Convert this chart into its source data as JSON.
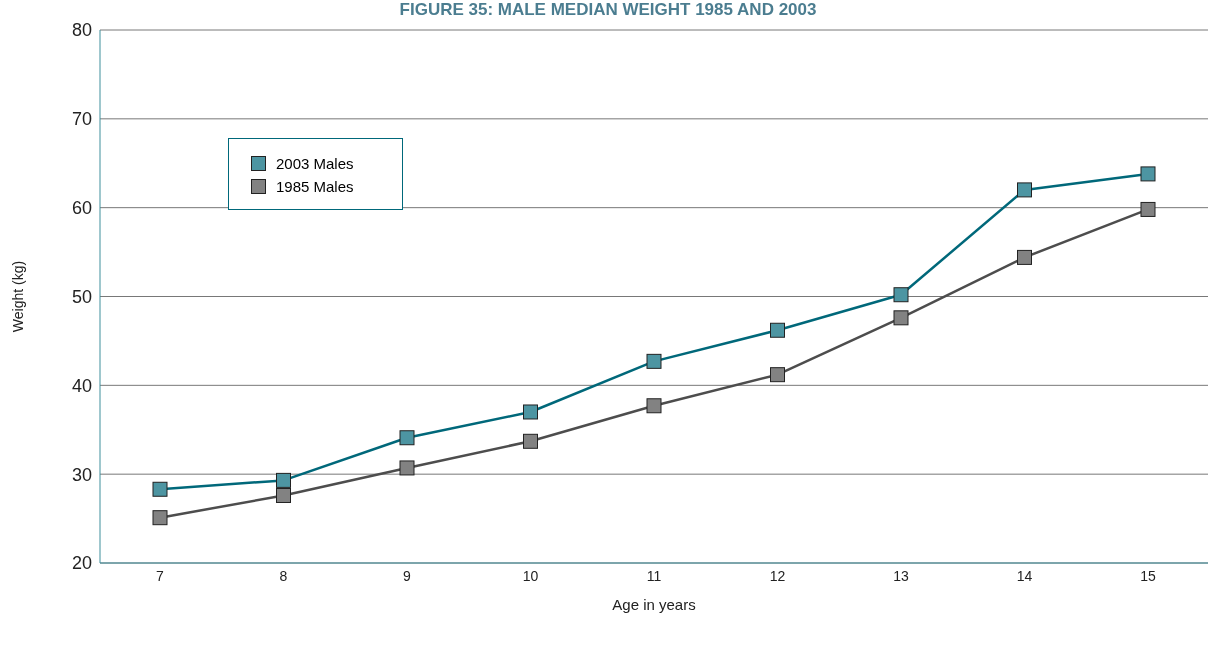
{
  "chart_data": {
    "type": "line",
    "title": "FIGURE 35:  MALE MEDIAN WEIGHT 1985 AND 2003",
    "xlabel": "Age in years",
    "ylabel": "Weight (kg)",
    "categories": [
      "7",
      "8",
      "9",
      "10",
      "11",
      "12",
      "13",
      "14",
      "15"
    ],
    "series": [
      {
        "name": "2003 Males",
        "color": "#00687a",
        "values": [
          28.3,
          29.3,
          34.1,
          37.0,
          42.7,
          46.2,
          50.2,
          62.0,
          63.8
        ]
      },
      {
        "name": "1985 Males",
        "color": "#4d4d4d",
        "values": [
          25.1,
          27.6,
          30.7,
          33.7,
          37.7,
          41.2,
          47.6,
          54.4,
          59.8
        ]
      }
    ],
    "ylim": [
      20,
      80
    ],
    "yticks": [
      20,
      30,
      40,
      50,
      60,
      70,
      80
    ],
    "grid": "y",
    "legend": "top left",
    "marker": "square",
    "line_style": "solid"
  }
}
